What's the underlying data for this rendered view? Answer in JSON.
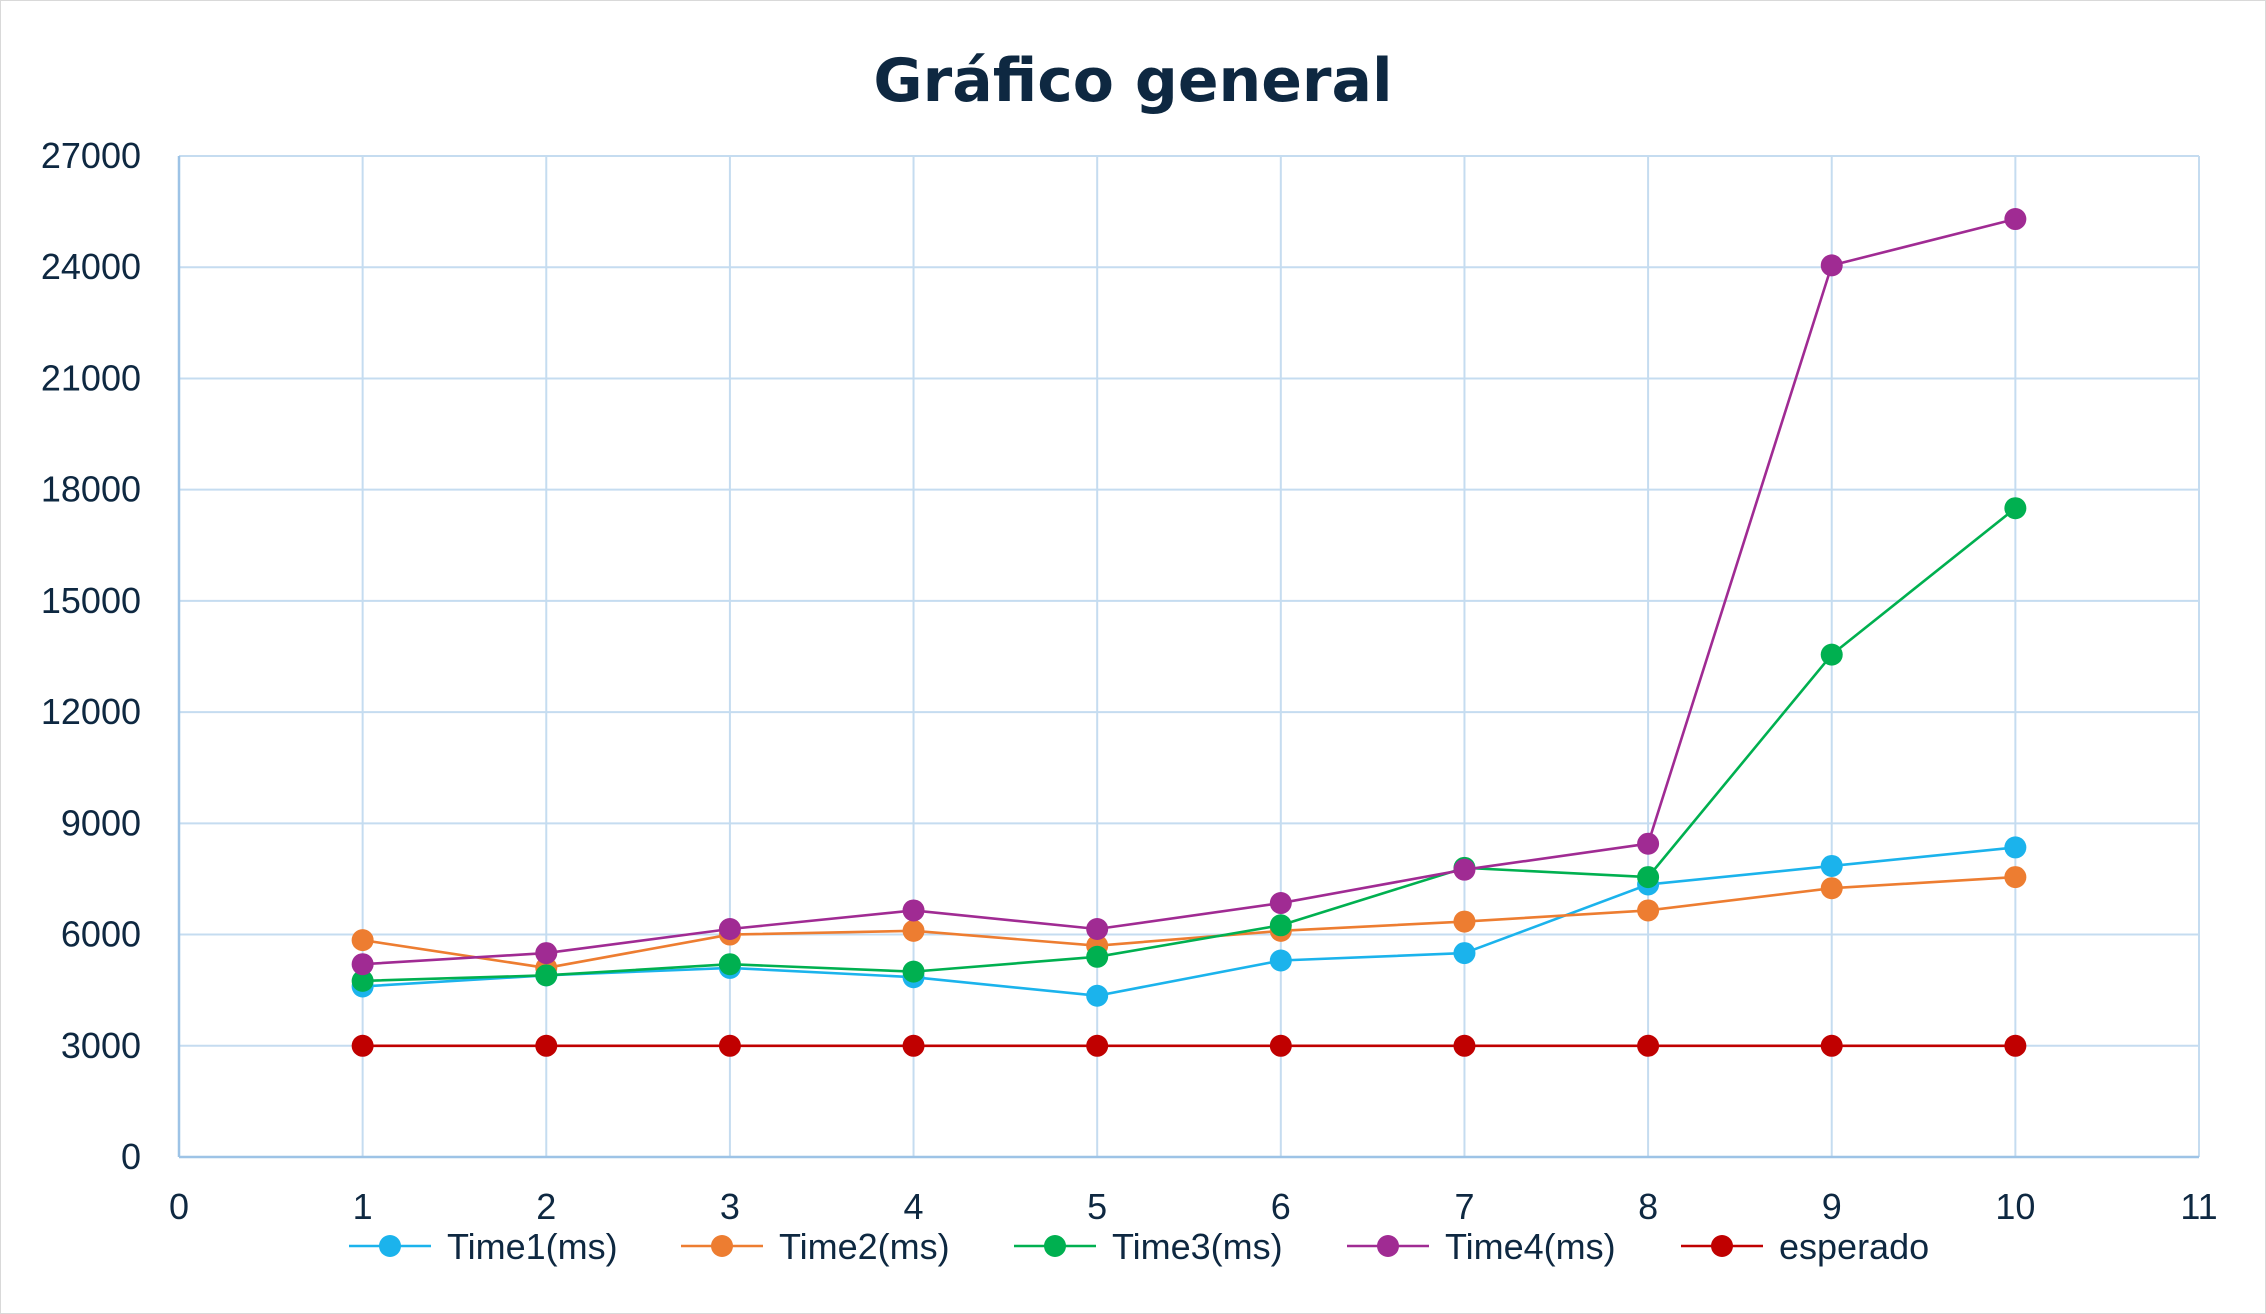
{
  "chart_data": {
    "type": "line",
    "title": "Gráfico general",
    "xlabel": "",
    "ylabel": "",
    "x": [
      1,
      2,
      3,
      4,
      5,
      6,
      7,
      8,
      9,
      10
    ],
    "xlim": [
      0,
      11
    ],
    "ylim": [
      0,
      27000
    ],
    "x_ticks": [
      0,
      1,
      2,
      3,
      4,
      5,
      6,
      7,
      8,
      9,
      10,
      11
    ],
    "y_ticks": [
      0,
      3000,
      6000,
      9000,
      12000,
      15000,
      18000,
      21000,
      24000,
      27000
    ],
    "grid": true,
    "legend_position": "bottom",
    "series": [
      {
        "name": "Time1(ms)",
        "color": "#1bb3ec",
        "values": [
          4600,
          4900,
          5100,
          4850,
          4350,
          5300,
          5500,
          7350,
          7850,
          8350
        ]
      },
      {
        "name": "Time2(ms)",
        "color": "#ed7d31",
        "values": [
          5850,
          5100,
          6000,
          6100,
          5700,
          6100,
          6350,
          6650,
          7250,
          7550
        ]
      },
      {
        "name": "Time3(ms)",
        "color": "#00b050",
        "values": [
          4750,
          4900,
          5200,
          5000,
          5400,
          6250,
          7800,
          7550,
          13550,
          17500
        ]
      },
      {
        "name": "Time4(ms)",
        "color": "#a02b93",
        "values": [
          5200,
          5500,
          6150,
          6650,
          6150,
          6850,
          7750,
          8450,
          24050,
          25300
        ]
      },
      {
        "name": "esperado",
        "color": "#c00000",
        "values": [
          3000,
          3000,
          3000,
          3000,
          3000,
          3000,
          3000,
          3000,
          3000,
          3000
        ]
      }
    ]
  },
  "style": {
    "title_color": "#0e2841",
    "tick_color": "#0e2841",
    "grid_color": "#c5dcf0",
    "axis_color": "#9dc3e6"
  }
}
